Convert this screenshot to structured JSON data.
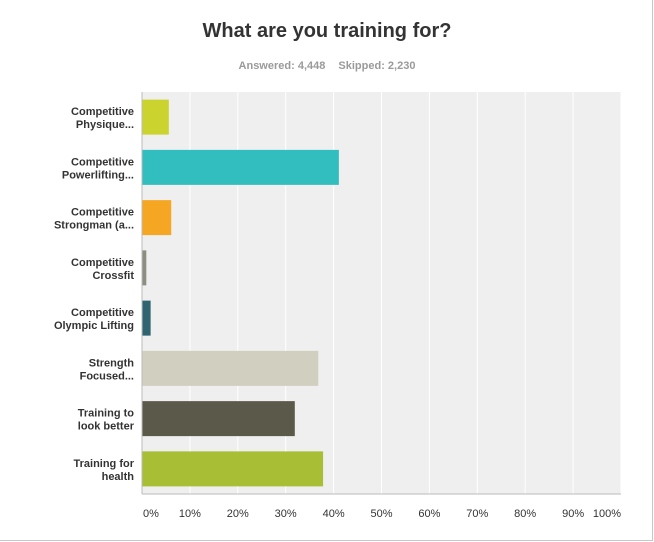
{
  "title": "What are you training for?",
  "stats": {
    "answered": "Answered: 4,448",
    "skipped": "Skipped: 2,230"
  },
  "colors": {
    "plot_background": "#efefef",
    "gridline": "#ffffff",
    "axis": "#bbbbbb"
  },
  "chart_data": {
    "type": "bar",
    "orientation": "horizontal",
    "title": "What are you training for?",
    "categories": [
      [
        "Competitive",
        "Physique..."
      ],
      [
        "Competitive",
        "Powerlifting..."
      ],
      [
        "Competitive",
        "Strongman (a..."
      ],
      [
        "Competitive",
        "Crossfit"
      ],
      [
        "Competitive",
        "Olympic Lifting"
      ],
      [
        "Strength",
        "Focused..."
      ],
      [
        "Training to",
        "look better"
      ],
      [
        "Training for",
        "health"
      ]
    ],
    "values": [
      5.6,
      41.1,
      6.1,
      0.9,
      1.8,
      36.8,
      31.9,
      37.8
    ],
    "colors": [
      "#cbd42f",
      "#32bebe",
      "#f5a623",
      "#8d8d80",
      "#2f6470",
      "#d1cfc0",
      "#5b5a4a",
      "#a8be35"
    ],
    "xticks": [
      "0%",
      "10%",
      "20%",
      "30%",
      "40%",
      "50%",
      "60%",
      "70%",
      "80%",
      "90%",
      "100%"
    ],
    "xlim": [
      0,
      100
    ],
    "grid": true,
    "legend": "none"
  }
}
